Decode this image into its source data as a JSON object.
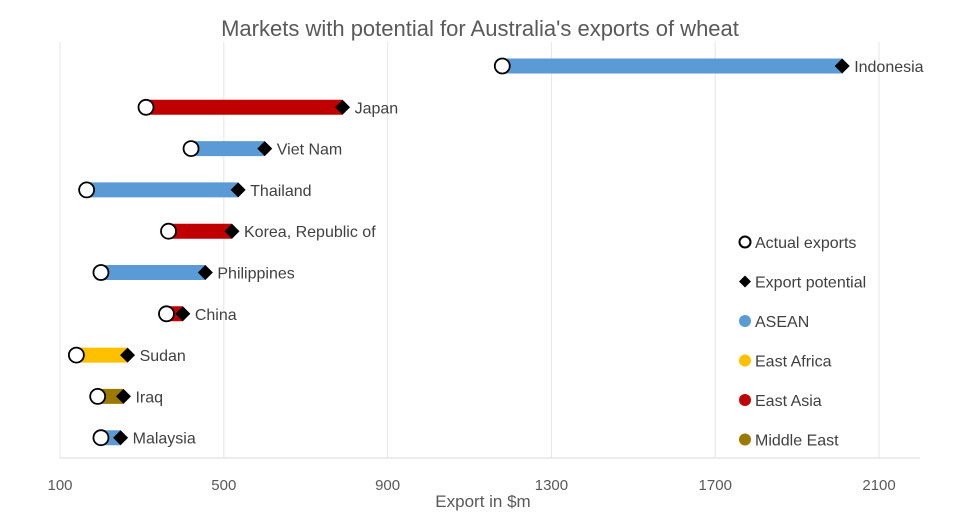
{
  "chart_data": {
    "type": "dumbbell",
    "title": "Markets with potential for Australia's exports of wheat",
    "xlabel": "Export in $m",
    "ylabel": "",
    "xlim": [
      100,
      2200
    ],
    "xticks": [
      100,
      500,
      900,
      1300,
      1700,
      2100
    ],
    "grid": true,
    "legend_position": "right",
    "legend": [
      {
        "label": "Actual exports",
        "marker": "circle"
      },
      {
        "label": "Export potential",
        "marker": "diamond"
      },
      {
        "label": "ASEAN",
        "color": "#5B9BD5"
      },
      {
        "label": "East Africa",
        "color": "#FFC000"
      },
      {
        "label": "East Asia",
        "color": "#C00000"
      },
      {
        "label": "Middle East",
        "color": "#9C7A00"
      }
    ],
    "markets": [
      {
        "name": "Indonesia",
        "region": "ASEAN",
        "actual": 1180,
        "potential": 2010
      },
      {
        "name": "Japan",
        "region": "East Asia",
        "actual": 310,
        "potential": 790
      },
      {
        "name": "Viet Nam",
        "region": "ASEAN",
        "actual": 420,
        "potential": 600
      },
      {
        "name": "Thailand",
        "region": "ASEAN",
        "actual": 165,
        "potential": 535
      },
      {
        "name": "Korea, Republic of",
        "region": "East Asia",
        "actual": 365,
        "potential": 520
      },
      {
        "name": "Philippines",
        "region": "ASEAN",
        "actual": 200,
        "potential": 455
      },
      {
        "name": "China",
        "region": "East Asia",
        "actual": 360,
        "potential": 400
      },
      {
        "name": "Sudan",
        "region": "East Africa",
        "actual": 140,
        "potential": 265
      },
      {
        "name": "Iraq",
        "region": "Middle East",
        "actual": 192,
        "potential": 255
      },
      {
        "name": "Malaysia",
        "region": "ASEAN",
        "actual": 200,
        "potential": 248
      }
    ]
  }
}
